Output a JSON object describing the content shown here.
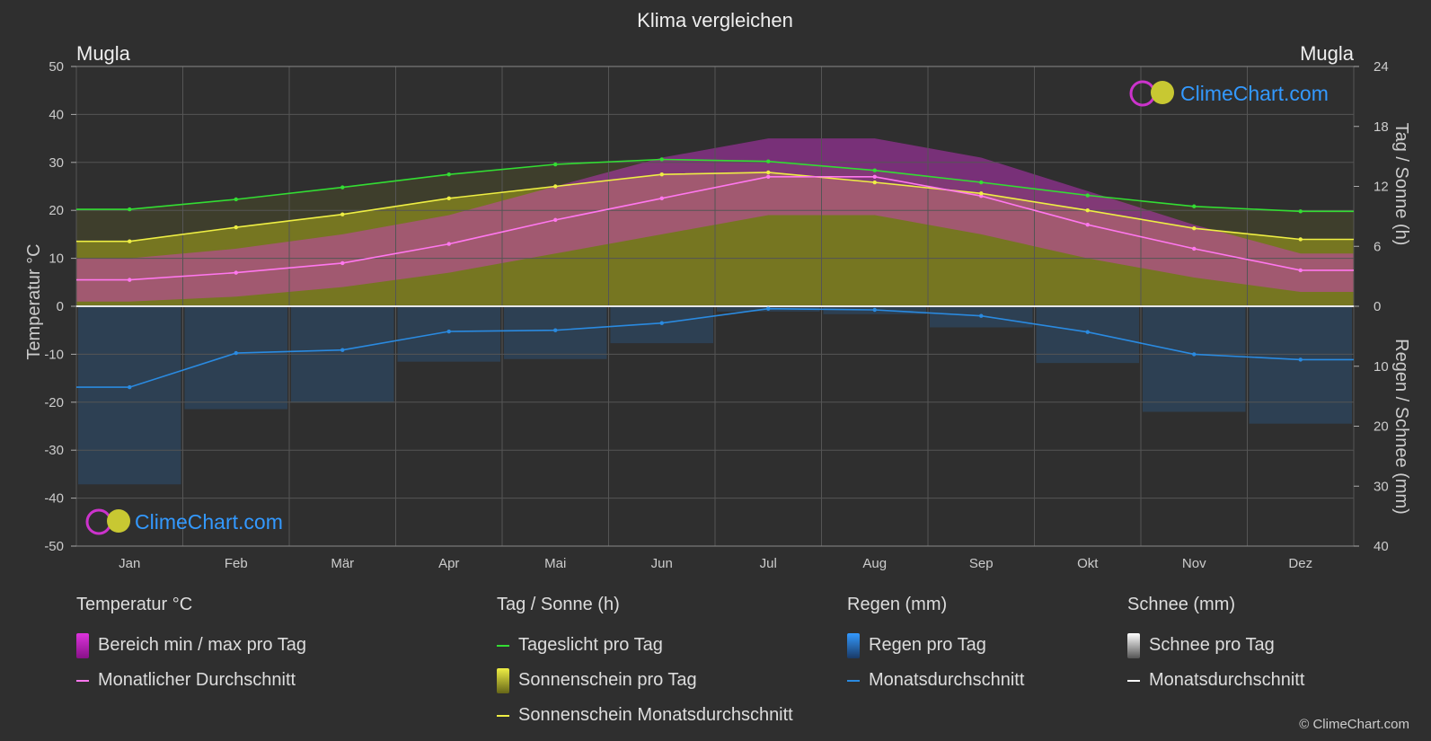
{
  "chart": {
    "title": "Klima vergleichen",
    "location_left": "Mugla",
    "location_right": "Mugla",
    "left_axis_label": "Temperatur °C",
    "right_axis_label_top": "Tag / Sonne (h)",
    "right_axis_label_bottom": "Regen / Schnee (mm)",
    "logo_text": "ClimeChart.com"
  },
  "legend": {
    "temperature": {
      "title": "Temperatur °C",
      "range_label": "Bereich min / max pro Tag",
      "monthly_avg_label": "Monatlicher Durchschnitt"
    },
    "sun": {
      "title": "Tag / Sonne (h)",
      "daylight_label": "Tageslicht pro Tag",
      "sunshine_label": "Sonnenschein pro Tag",
      "sunshine_avg_label": "Sonnenschein Monatsdurchschnitt"
    },
    "rain": {
      "title": "Regen (mm)",
      "per_day_label": "Regen pro Tag",
      "avg_label": "Monatsdurchschnitt"
    },
    "snow": {
      "title": "Schnee (mm)",
      "per_day_label": "Schnee pro Tag",
      "avg_label": "Monatsdurchschnitt"
    }
  },
  "copyright": "© ClimeChart.com",
  "colors": {
    "background": "#2f2f2f",
    "grid": "#555555",
    "daylight": "#33dd33",
    "sunshine_avg": "#eeee44",
    "sunshine_fill": "#8a8a1e",
    "temp_range": "#dd33dd",
    "temp_avg": "#ff77ee",
    "rain": "#2a7fd4",
    "rain_avg": "#2a8ae0",
    "snow_avg": "#ffffff",
    "logo_text": "#3399ff"
  },
  "chart_data": {
    "type": "line",
    "categories": [
      "Jan",
      "Feb",
      "Mär",
      "Apr",
      "Mai",
      "Jun",
      "Jul",
      "Aug",
      "Sep",
      "Okt",
      "Nov",
      "Dez"
    ],
    "left_axis": {
      "ticks": [
        50,
        40,
        30,
        20,
        10,
        0,
        -10,
        -20,
        -30,
        -40,
        -50
      ],
      "ylim": [
        -50,
        50
      ]
    },
    "right_axis_sun": {
      "ticks": [
        24,
        18,
        12,
        6,
        0
      ],
      "ylim": [
        0,
        24
      ]
    },
    "right_axis_rain": {
      "ticks": [
        0,
        10,
        20,
        30,
        40
      ],
      "ylim": [
        0,
        40
      ]
    },
    "series": [
      {
        "name": "Tageslicht pro Tag",
        "axis": "sun_h",
        "values": [
          9.7,
          10.7,
          11.9,
          13.2,
          14.2,
          14.7,
          14.5,
          13.6,
          12.4,
          11.1,
          10.0,
          9.5
        ]
      },
      {
        "name": "Sonnenschein Monatsdurchschnitt",
        "axis": "sun_h",
        "values": [
          6.5,
          7.9,
          9.2,
          10.8,
          12.0,
          13.2,
          13.4,
          12.4,
          11.3,
          9.6,
          7.8,
          6.7
        ]
      },
      {
        "name": "Monatlicher Durchschnitt",
        "axis": "temp_c",
        "values": [
          5.5,
          7.0,
          9.0,
          13.0,
          18.0,
          22.5,
          27.0,
          27.0,
          23.0,
          17.0,
          12.0,
          7.5
        ]
      },
      {
        "name": "Monatsdurchschnitt Regen",
        "axis": "rain_mm",
        "values": [
          13.5,
          7.8,
          7.3,
          4.2,
          4.0,
          2.8,
          0.4,
          0.6,
          1.6,
          4.3,
          8.0,
          8.9
        ]
      },
      {
        "name": "Monatsdurchschnitt Schnee",
        "axis": "rain_mm",
        "values": [
          0,
          0,
          0,
          0,
          0,
          0,
          0,
          0,
          0,
          0,
          0,
          0
        ]
      }
    ],
    "temp_range": {
      "name": "Bereich min / max pro Tag",
      "min": [
        1,
        2,
        4,
        7,
        11,
        15,
        19,
        19,
        15,
        10,
        6,
        3
      ],
      "max": [
        10,
        12,
        15,
        19,
        25,
        31,
        35,
        35,
        31,
        24,
        17,
        11
      ]
    }
  }
}
